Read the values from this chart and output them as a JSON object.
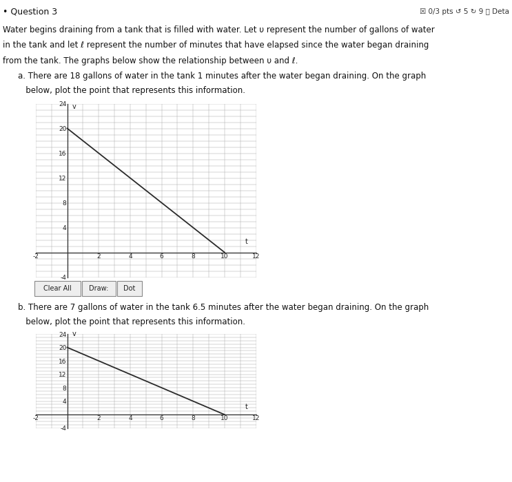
{
  "title_question": "• Question 3",
  "header_text": "☒ 0/3 pts ↺ 5 ↻ 9 ⓘ Deta",
  "description_line1": "Water begins draining from a tank that is filled with water. Let υ represent the number of gallons of water",
  "description_line2": "in the tank and let ℓ represent the number of minutes that have elapsed since the water began draining",
  "description_line3": "from the tank. The graphs below show the relationship between υ and ℓ.",
  "part_a_line1": "a. There are 18 gallons of water in the tank 1 minutes after the water began draining. On the graph",
  "part_a_line2": "   below, plot the point that represents this information.",
  "part_b_line1": "b. There are 7 gallons of water in the tank 6.5 minutes after the water began draining. On the graph",
  "part_b_line2": "   below, plot the point that represents this information.",
  "buttons": [
    "Clear All",
    "Draw:",
    "Dot"
  ],
  "graph_a": {
    "line_x": [
      0,
      10
    ],
    "line_y": [
      20,
      0
    ],
    "xlim": [
      -2,
      12
    ],
    "ylim": [
      -4,
      24
    ],
    "xticks": [
      -2,
      0,
      2,
      4,
      6,
      8,
      10,
      12
    ],
    "yticks": [
      -4,
      0,
      4,
      8,
      12,
      16,
      20,
      24
    ],
    "xlabel": "t",
    "ylabel": "v",
    "line_color": "#2a2a2a",
    "grid_color": "#aaaaaa",
    "bg_color": "#ffffff"
  },
  "graph_b": {
    "line_x": [
      0,
      10
    ],
    "line_y": [
      20,
      0
    ],
    "xlim": [
      -2,
      12
    ],
    "ylim": [
      -4,
      24
    ],
    "xticks": [
      -2,
      0,
      2,
      4,
      6,
      8,
      10,
      12
    ],
    "yticks": [
      -4,
      0,
      4,
      8,
      12,
      16,
      20,
      24
    ],
    "xlabel": "t",
    "ylabel": "v",
    "line_color": "#2a2a2a",
    "grid_color": "#aaaaaa",
    "bg_color": "#ffffff"
  },
  "page_bg": "#ffffff",
  "header_bg": "#e8e8e8",
  "text_color": "#111111",
  "font_size_title": 9,
  "font_size_body": 8.5,
  "font_size_tick": 6.5
}
